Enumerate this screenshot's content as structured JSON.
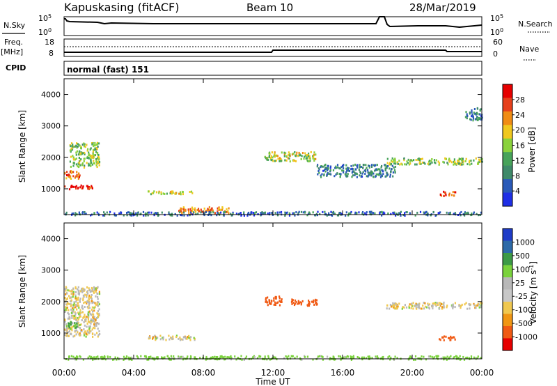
{
  "header": {
    "station": "Kapuskasing (fitACF)",
    "beam": "Beam 10",
    "date": "28/Mar/2019"
  },
  "strips": {
    "nsky_label": "N.Sky",
    "nsearch_label": "N.Search",
    "log_ticks": [
      "10^5",
      "10^0"
    ],
    "freq_label": "Freq.",
    "freq_unit": "[MHz]",
    "freq_ticks": [
      "18",
      "8"
    ],
    "nave_label": "Nave",
    "nave_ticks": [
      "60",
      "0"
    ],
    "cpid_label": "CPID",
    "mode_text": "normal (fast) 151"
  },
  "colors": {
    "power": [
      "#1f2fe6",
      "#2a5ab8",
      "#3f8a6a",
      "#47a35a",
      "#8ad23c",
      "#f0c81e",
      "#f08c14",
      "#e6401c",
      "#e60000"
    ],
    "velocity": [
      "#e60000",
      "#f05a14",
      "#f09614",
      "#f0c850",
      "#c8c8c8",
      "#b8b8b8",
      "#7ad23c",
      "#3c9a46",
      "#2d6aa8",
      "#1f3cc8"
    ]
  },
  "chart_data": [
    {
      "type": "heatmap",
      "title": "Power",
      "xlabel": "Time UT",
      "ylabel": "Slant Range [km]",
      "xticks": [
        "00:00",
        "04:00",
        "08:00",
        "12:00",
        "16:00",
        "20:00",
        "00:00"
      ],
      "yticks": [
        "1000",
        "2000",
        "3000",
        "4000"
      ],
      "xlim": [
        0,
        24
      ],
      "ylim": [
        180,
        4500
      ],
      "colorbar": {
        "label": "Power [dB]",
        "ticks": [
          "28",
          "24",
          "20",
          "16",
          "12",
          "8",
          "4"
        ],
        "range": [
          0,
          30
        ]
      },
      "features": [
        {
          "t0": 0.0,
          "t1": 1.6,
          "r0": 1000,
          "r1": 1150,
          "value": 28
        },
        {
          "t0": 0.0,
          "t1": 1.0,
          "r0": 1350,
          "r1": 1600,
          "value": 22
        },
        {
          "t0": 0.3,
          "t1": 2.0,
          "r0": 1700,
          "r1": 2500,
          "value": 14
        },
        {
          "t0": 4.8,
          "t1": 7.5,
          "r0": 850,
          "r1": 950,
          "value": 18
        },
        {
          "t0": 6.5,
          "t1": 9.5,
          "r0": 250,
          "r1": 450,
          "value": 22
        },
        {
          "t0": 11.5,
          "t1": 14.5,
          "r0": 1900,
          "r1": 2200,
          "value": 16
        },
        {
          "t0": 14.5,
          "t1": 19.0,
          "r0": 1400,
          "r1": 1800,
          "value": 8
        },
        {
          "t0": 18.5,
          "t1": 24.0,
          "r0": 1800,
          "r1": 2000,
          "value": 14
        },
        {
          "t0": 21.5,
          "t1": 22.5,
          "r0": 800,
          "r1": 950,
          "value": 26
        },
        {
          "t0": 23.0,
          "t1": 24.0,
          "r0": 3200,
          "r1": 3600,
          "value": 8
        },
        {
          "t0": 0.0,
          "t1": 24.0,
          "r0": 180,
          "r1": 300,
          "value": 6
        }
      ]
    },
    {
      "type": "heatmap",
      "title": "Velocity",
      "xlabel": "Time UT",
      "ylabel": "Slant Range [km]",
      "xticks": [
        "00:00",
        "04:00",
        "08:00",
        "12:00",
        "16:00",
        "20:00",
        "00:00"
      ],
      "yticks": [
        "1000",
        "2000",
        "3000",
        "4000"
      ],
      "xlim": [
        0,
        24
      ],
      "ylim": [
        180,
        4500
      ],
      "colorbar": {
        "label": "Velocity [m s^-1]",
        "ticks": [
          "1000",
          "500",
          "100",
          "25",
          "-25",
          "-100",
          "-500",
          "-1000"
        ]
      },
      "features": [
        {
          "t0": 0.0,
          "t1": 2.0,
          "r0": 900,
          "r1": 2500,
          "value": 0
        },
        {
          "t0": 0.2,
          "t1": 0.8,
          "r0": 1150,
          "r1": 1400,
          "value": 100
        },
        {
          "t0": 4.8,
          "t1": 7.5,
          "r0": 800,
          "r1": 950,
          "value": 0
        },
        {
          "t0": 11.5,
          "t1": 12.5,
          "r0": 1900,
          "r1": 2200,
          "value": -200
        },
        {
          "t0": 13.0,
          "t1": 14.5,
          "r0": 1900,
          "r1": 2100,
          "value": -300
        },
        {
          "t0": 18.5,
          "t1": 24.0,
          "r0": 1800,
          "r1": 2000,
          "value": 0
        },
        {
          "t0": 21.5,
          "t1": 22.5,
          "r0": 800,
          "r1": 950,
          "value": -300
        },
        {
          "t0": 0.0,
          "t1": 24.0,
          "r0": 180,
          "r1": 300,
          "value": 50
        }
      ]
    }
  ]
}
